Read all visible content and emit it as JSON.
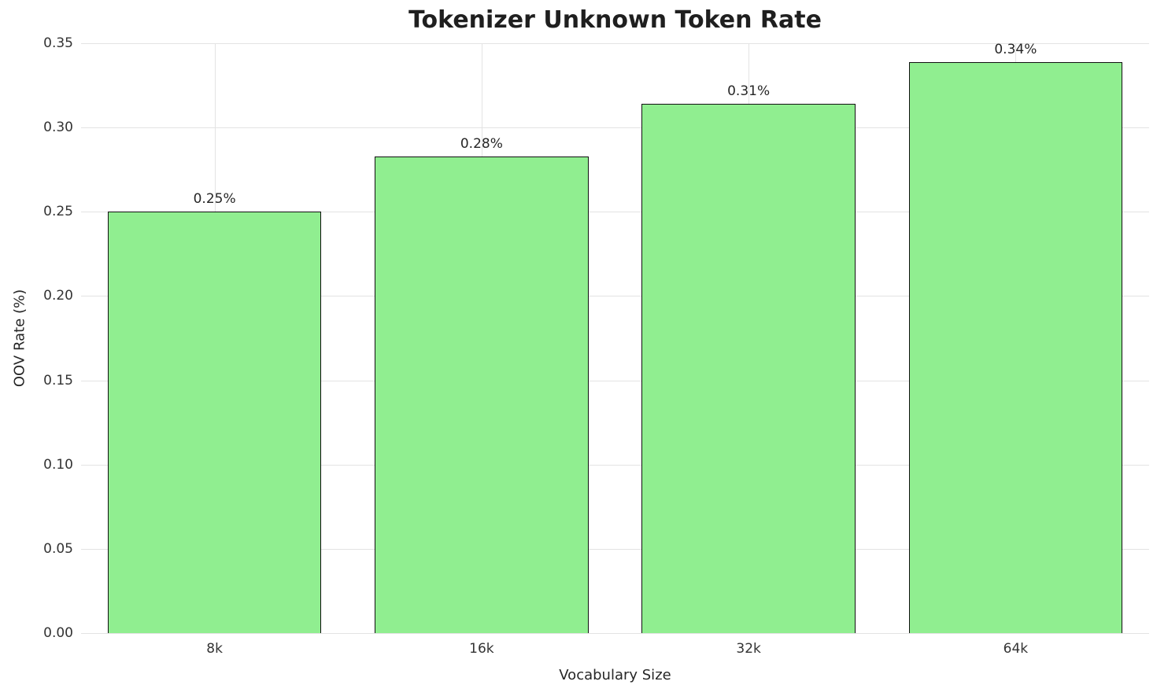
{
  "chart_data": {
    "type": "bar",
    "title": "Tokenizer Unknown Token Rate",
    "xlabel": "Vocabulary Size",
    "ylabel": "OOV Rate (%)",
    "categories": [
      "8k",
      "16k",
      "32k",
      "64k"
    ],
    "values": [
      0.25,
      0.283,
      0.314,
      0.339
    ],
    "value_labels": [
      "0.25%",
      "0.28%",
      "0.31%",
      "0.34%"
    ],
    "ylim": [
      0.0,
      0.35
    ],
    "yticks": [
      0.0,
      0.05,
      0.1,
      0.15,
      0.2,
      0.25,
      0.3,
      0.35
    ],
    "ytick_labels": [
      "0.00",
      "0.05",
      "0.10",
      "0.15",
      "0.20",
      "0.25",
      "0.30",
      "0.35"
    ],
    "bar_color": "#90EE90",
    "bar_edge_color": "#111111",
    "grid": true,
    "legend": null
  }
}
